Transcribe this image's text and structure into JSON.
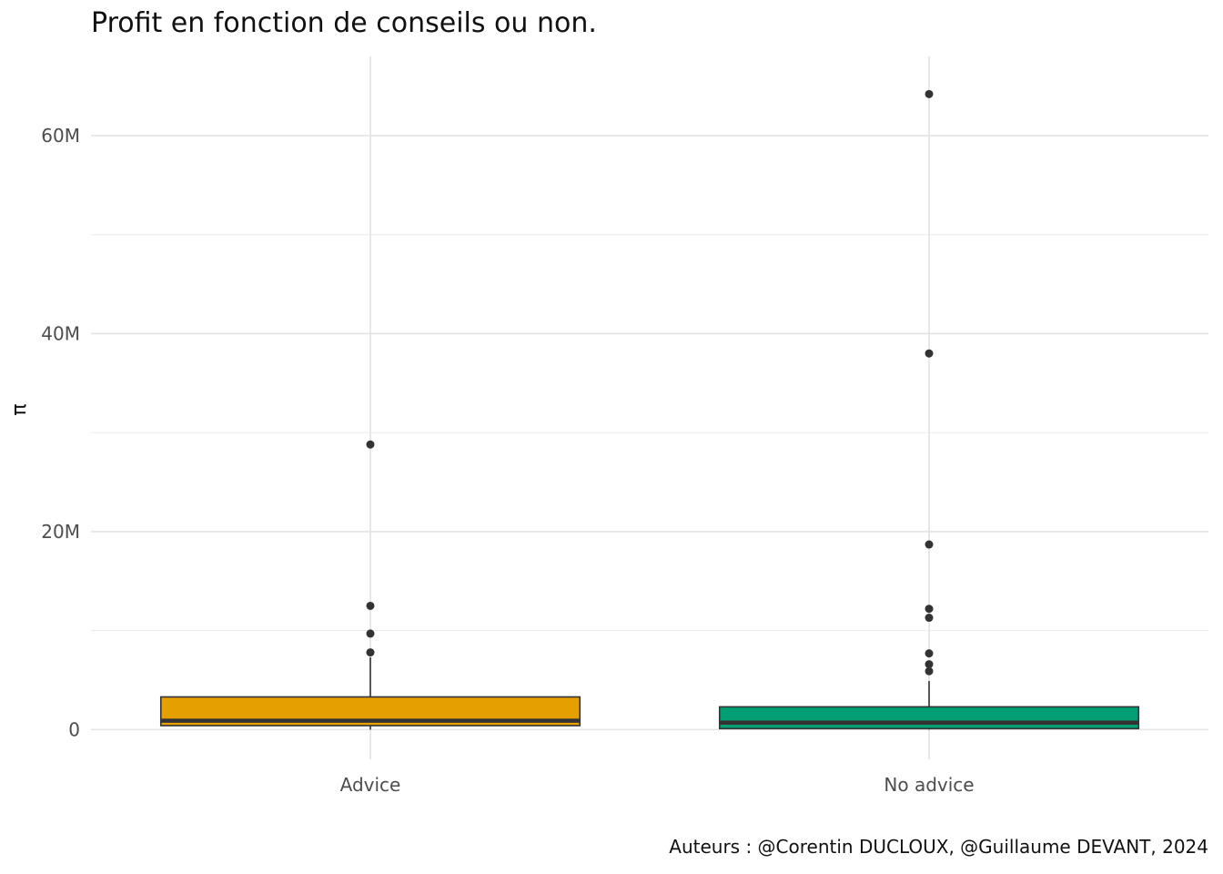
{
  "chart_data": {
    "type": "boxplot",
    "title": "Profit en fonction de conseils ou non.",
    "xlabel": "",
    "ylabel": "π",
    "caption": "Auteurs : @Corentin DUCLOUX, @Guillaume DEVANT, 2024",
    "categories": [
      "Advice",
      "No advice"
    ],
    "ylim": [
      -3000000,
      68000000
    ],
    "y_ticks": [
      0,
      20000000,
      40000000,
      60000000
    ],
    "y_tick_labels": [
      "0",
      "20M",
      "40M",
      "60M"
    ],
    "grid": true,
    "legend": "none",
    "series": [
      {
        "category": "Advice",
        "color": "#E69F00",
        "whisker_low": 0,
        "q1": 400000,
        "median": 900000,
        "q3": 3300000,
        "whisker_high": 7300000,
        "outliers": [
          7800000,
          9700000,
          12500000,
          28800000
        ]
      },
      {
        "category": "No advice",
        "color": "#009E73",
        "whisker_low": 0,
        "q1": 100000,
        "median": 700000,
        "q3": 2300000,
        "whisker_high": 4900000,
        "outliers": [
          5900000,
          6600000,
          7700000,
          11300000,
          12200000,
          18700000,
          38000000,
          64200000
        ]
      }
    ]
  }
}
